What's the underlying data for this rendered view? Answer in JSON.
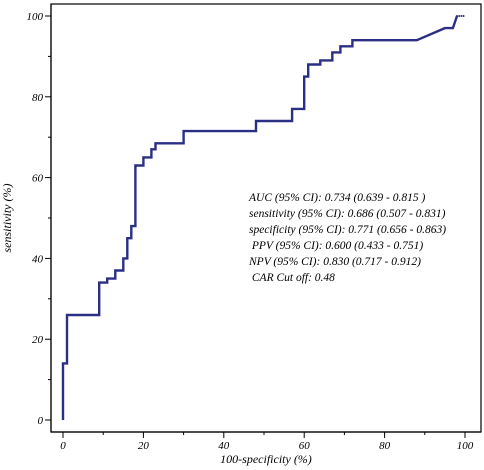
{
  "chart_data": {
    "type": "line",
    "xlabel": "100-specificity (%)",
    "ylabel": "sensitivity (%)",
    "xlim": [
      0,
      100
    ],
    "ylim": [
      0,
      100
    ],
    "x_ticks": [
      0,
      20,
      40,
      60,
      80,
      100
    ],
    "y_ticks": [
      0,
      20,
      40,
      60,
      80,
      100
    ],
    "x_tick_labels": [
      "0",
      "20",
      "40",
      "60",
      "80",
      "100"
    ],
    "y_tick_labels": [
      "0",
      "20",
      "40",
      "60",
      "80",
      "100"
    ],
    "grid": false,
    "line_color": "#2b2f83",
    "series": [
      {
        "x": [
          0,
          0,
          1,
          1,
          9,
          9,
          11,
          11,
          13,
          13,
          15,
          15,
          16,
          16,
          17,
          17,
          18,
          18,
          20,
          20,
          22,
          22,
          23,
          23,
          30,
          30,
          48,
          48,
          57,
          57,
          60,
          60,
          61,
          61,
          64,
          64,
          67,
          67,
          69,
          69,
          72,
          72,
          88,
          95,
          97,
          98
        ],
        "y": [
          0,
          14,
          14,
          26,
          26,
          34,
          34,
          35,
          35,
          37,
          37,
          40,
          40,
          45,
          45,
          48,
          48,
          63,
          63,
          65,
          65,
          67,
          67,
          68.5,
          68.5,
          71.5,
          71.5,
          74,
          74,
          77,
          77,
          85,
          85,
          88,
          88,
          89,
          89,
          91,
          91,
          92.5,
          92.5,
          94,
          94,
          97,
          97,
          100
        ]
      }
    ],
    "annotations": [
      "AUC (95% CI): 0.734 (0.639 - 0.815 )",
      "sensitivity (95% CI): 0.686 (0.507 - 0.831)",
      "specificity (95% CI): 0.771 (0.656 - 0.863)",
      " PPV (95% CI): 0.600 (0.433 - 0.751)",
      "NPV (95% CI): 0.830 (0.717 - 0.912)",
      " CAR Cut off: 0.48"
    ]
  }
}
